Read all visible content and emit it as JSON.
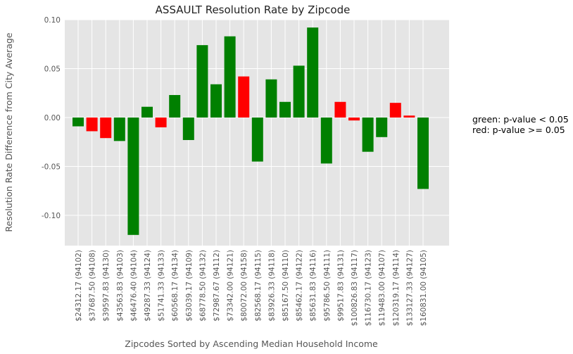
{
  "chart_data": {
    "type": "bar",
    "title": "ASSAULT Resolution Rate by Zipcode",
    "xlabel": "Zipcodes Sorted by Ascending Median Household Income",
    "ylabel": "Resolution Rate Difference from City Average",
    "ylim": [
      -0.13,
      0.1
    ],
    "yticks": [
      "0.10",
      "0.05",
      "0.00",
      "-0.05",
      "-0.10"
    ],
    "ytick_values": [
      0.1,
      0.05,
      0.0,
      -0.05,
      -0.1
    ],
    "grid": true,
    "colors": {
      "significant": "#008000",
      "not_significant": "#ff0000",
      "background": "#e5e5e5",
      "grid": "#ffffff"
    },
    "categories": [
      "$24312.17 (94102)",
      "$37687.50 (94108)",
      "$39597.83 (94130)",
      "$43563.83 (94103)",
      "$46476.40 (94104)",
      "$49287.33 (94124)",
      "$51741.33 (94133)",
      "$60568.17 (94134)",
      "$63039.17 (94109)",
      "$68778.50 (94132)",
      "$72987.67 (94112)",
      "$73342.00 (94121)",
      "$80072.00 (94158)",
      "$82568.17 (94115)",
      "$83926.33 (94118)",
      "$85167.50 (94110)",
      "$85462.17 (94122)",
      "$85631.83 (94116)",
      "$95786.50 (94111)",
      "$99517.83 (94131)",
      "$100826.83 (94117)",
      "$116730.17 (94123)",
      "$119483.00 (94107)",
      "$120319.17 (94114)",
      "$133127.33 (94127)",
      "$160831.00 (94105)"
    ],
    "values": [
      -0.009,
      -0.014,
      -0.021,
      -0.024,
      -0.12,
      0.011,
      -0.01,
      0.023,
      -0.023,
      0.074,
      0.034,
      0.083,
      0.042,
      -0.045,
      0.039,
      0.016,
      0.053,
      0.092,
      -0.047,
      0.016,
      -0.003,
      -0.035,
      -0.02,
      0.015,
      0.002,
      -0.073
    ],
    "significant": [
      true,
      false,
      false,
      true,
      true,
      true,
      false,
      true,
      true,
      true,
      true,
      true,
      false,
      true,
      true,
      true,
      true,
      true,
      true,
      false,
      false,
      true,
      true,
      false,
      false,
      true
    ]
  },
  "legend": {
    "green_note": "green: p-value < 0.05",
    "red_note": "red: p-value >= 0.05"
  }
}
